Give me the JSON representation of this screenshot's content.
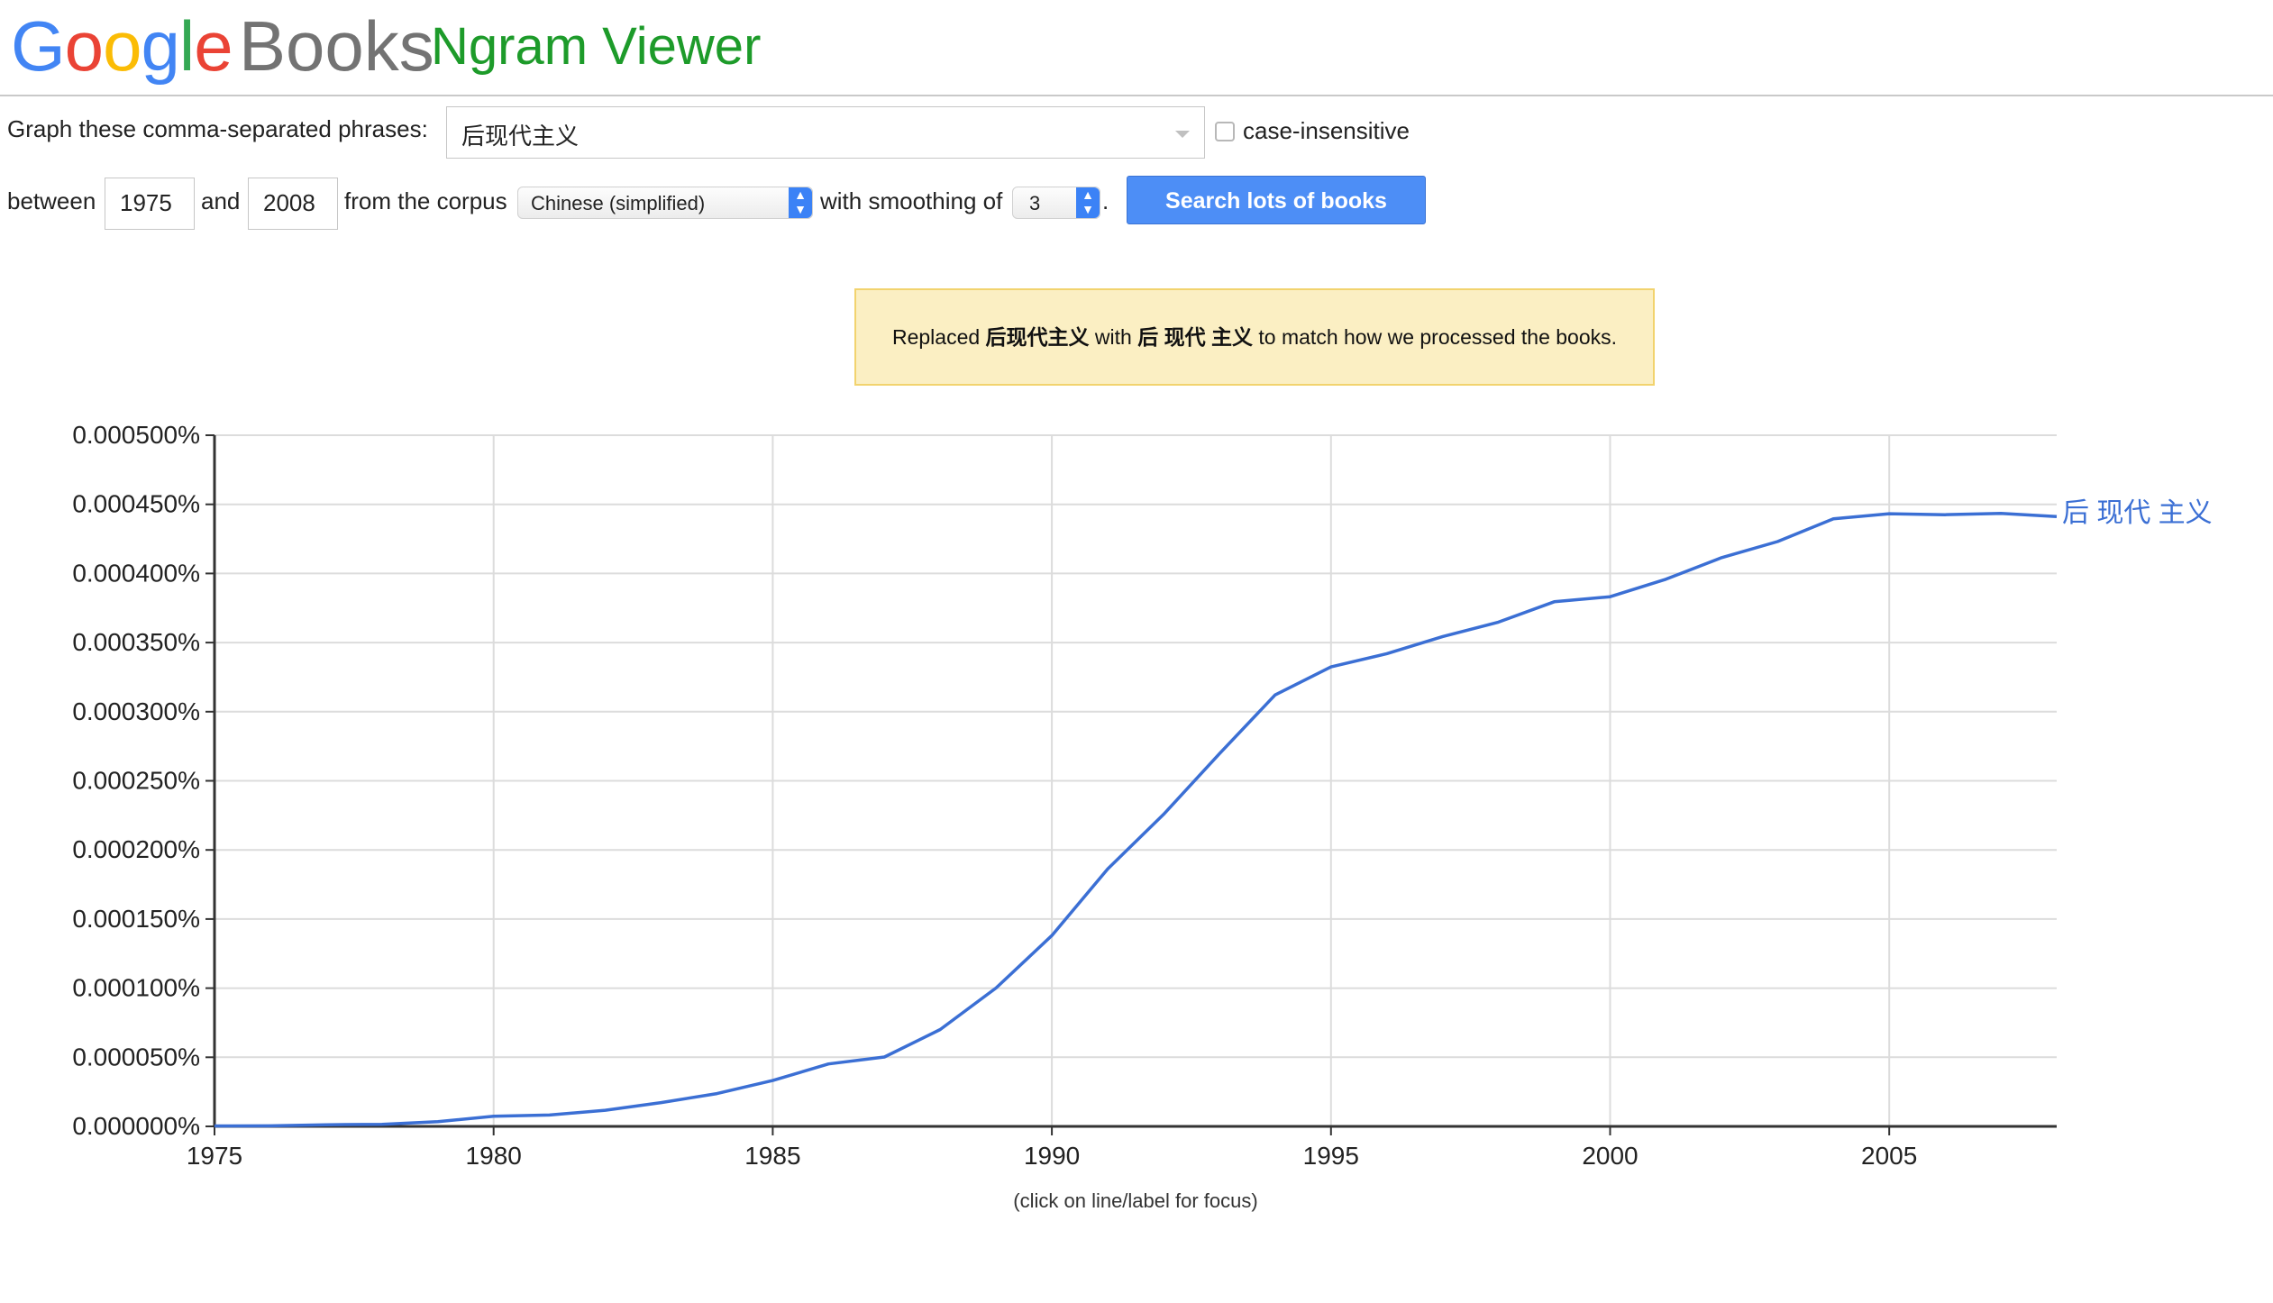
{
  "header": {
    "logo_letters": [
      "G",
      "o",
      "o",
      "g",
      "l",
      "e"
    ],
    "books": "Books",
    "title": "Ngram Viewer"
  },
  "form": {
    "phrases_label": "Graph these comma-separated phrases:",
    "phrases_value": "后现代主义",
    "case_label": "case-insensitive",
    "case_checked": false,
    "between_label": "between",
    "start_year": "1975",
    "and_label": "and",
    "end_year": "2008",
    "corpus_label": "from the corpus",
    "corpus_value": "Chinese (simplified)",
    "smoothing_label": "with smoothing of",
    "smoothing_value": "3",
    "period": ".",
    "search_button": "Search lots of books"
  },
  "notice": {
    "prefix": "Replaced ",
    "original": "后现代主义",
    "mid": " with ",
    "replacement": "后 现代 主义",
    "suffix": " to match how we processed the books."
  },
  "chart_data": {
    "type": "line",
    "xlabel": "",
    "ylabel": "",
    "footnote": "(click on line/label for focus)",
    "xlim": [
      1975,
      2008
    ],
    "ylim": [
      0,
      0.0005
    ],
    "x_ticks": [
      1975,
      1980,
      1985,
      1990,
      1995,
      2000,
      2005
    ],
    "x_tick_labels": [
      "1975",
      "1980",
      "1985",
      "1990",
      "1995",
      "2000",
      "2005"
    ],
    "y_ticks": [
      0,
      5e-05,
      0.0001,
      0.00015,
      0.0002,
      0.00025,
      0.0003,
      0.00035,
      0.0004,
      0.00045,
      0.0005
    ],
    "y_tick_labels": [
      "0.000000%",
      "0.000050%",
      "0.000100%",
      "0.000150%",
      "0.000200%",
      "0.000250%",
      "0.000300%",
      "0.000350%",
      "0.000400%",
      "0.000450%",
      "0.000500%"
    ],
    "grid": true,
    "line_color": "#3b6fd4",
    "series": [
      {
        "name": "后 现代 主义",
        "x": [
          1975,
          1976,
          1977,
          1978,
          1979,
          1980,
          1981,
          1982,
          1983,
          1984,
          1985,
          1986,
          1987,
          1988,
          1989,
          1990,
          1991,
          1992,
          1993,
          1994,
          1995,
          1996,
          1997,
          1998,
          1999,
          2000,
          2001,
          2002,
          2003,
          2004,
          2005,
          2006,
          2007,
          2008
        ],
        "values": [
          3e-07,
          4e-07,
          1.2e-06,
          1.5e-06,
          3.4e-06,
          7.3e-06,
          8.2e-06,
          1.17e-05,
          1.72e-05,
          2.37e-05,
          3.32e-05,
          4.52e-05,
          5.02e-05,
          7.01e-05,
          0.0001001,
          0.0001381,
          0.0001862,
          0.0002257,
          0.0002695,
          0.0003121,
          0.0003324,
          0.000342,
          0.0003544,
          0.0003648,
          0.0003795,
          0.0003832,
          0.0003958,
          0.0004115,
          0.0004231,
          0.0004395,
          0.0004432,
          0.0004425,
          0.0004435,
          0.0004412
        ]
      }
    ]
  }
}
